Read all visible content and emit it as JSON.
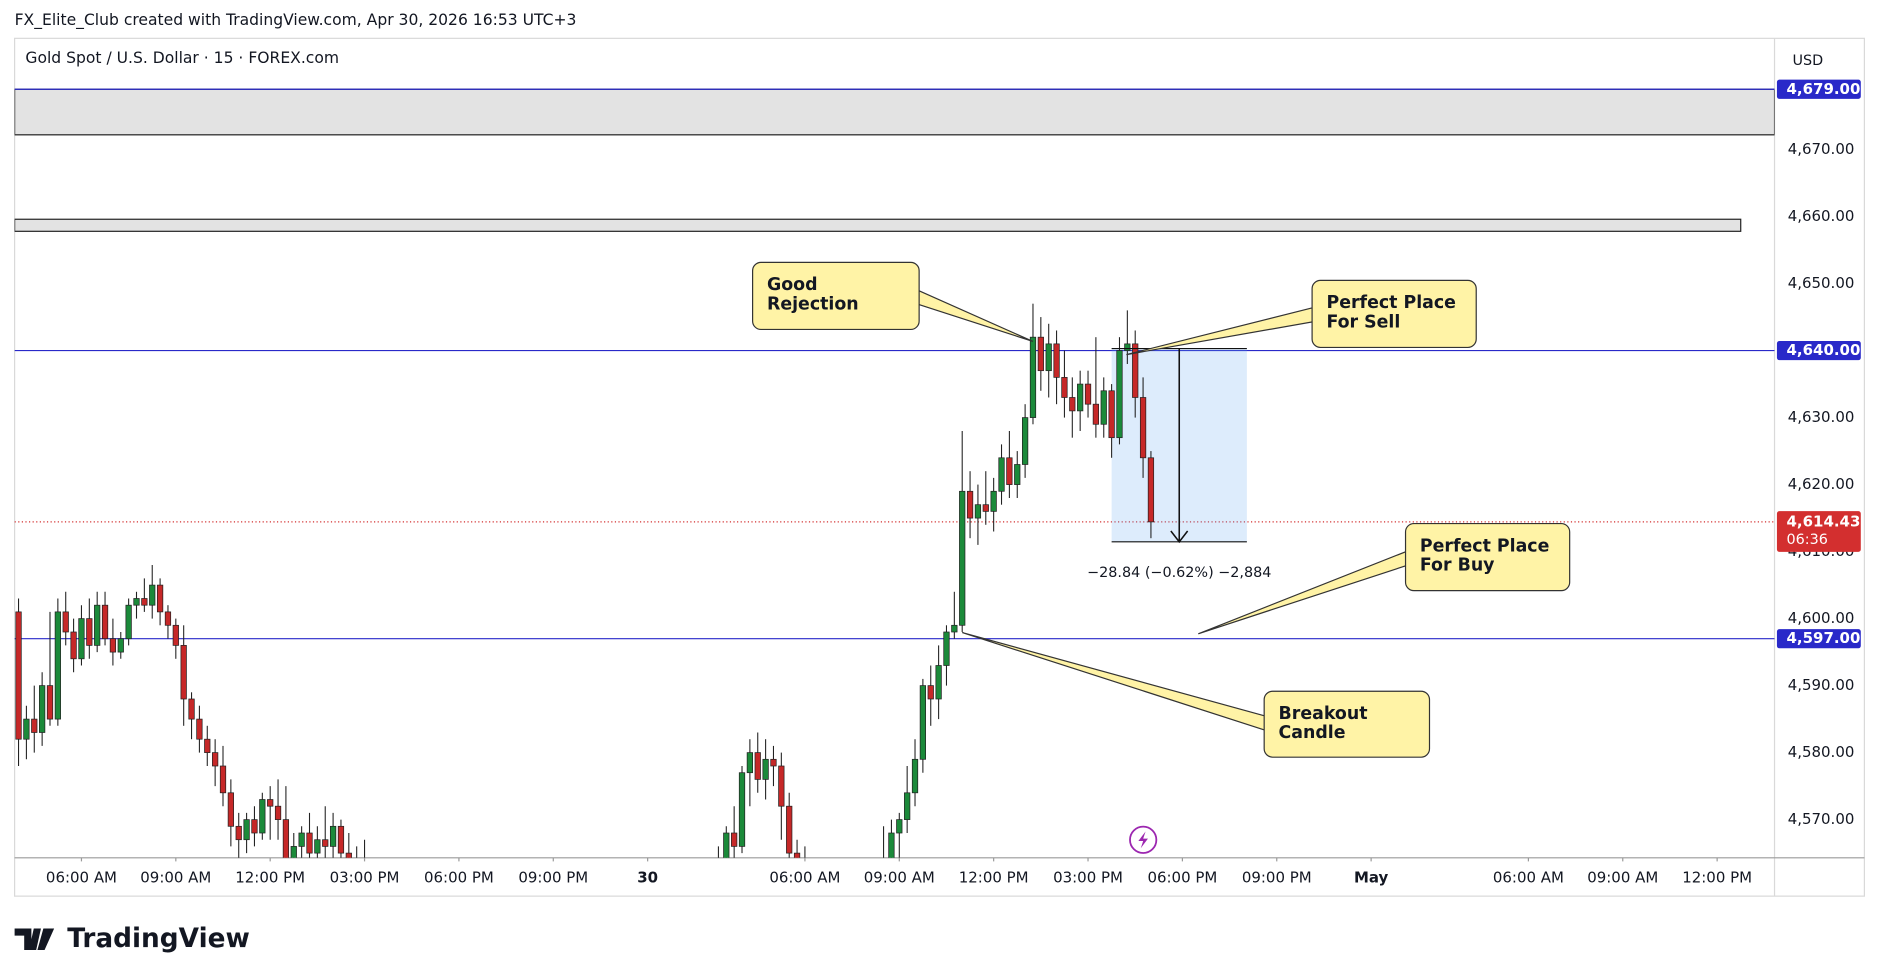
{
  "chart_data": {
    "type": "candlestick",
    "credit": "FX_Elite_Club created with TradingView.com, Apr 30, 2026 16:53 UTC+3",
    "title": "Gold Spot / U.S. Dollar · 15 · FOREX.com",
    "y_unit": "USD",
    "brand": "TradingView",
    "up_color": "#1b8a3a",
    "down_color": "#c62828",
    "xlim": [
      -0.5,
      223.3
    ],
    "xticks": [
      {
        "value": 8,
        "label": "06:00 AM"
      },
      {
        "value": 20,
        "label": "09:00 AM"
      },
      {
        "value": 32,
        "label": "12:00 PM"
      },
      {
        "value": 44,
        "label": "03:00 PM"
      },
      {
        "value": 56,
        "label": "06:00 PM"
      },
      {
        "value": 68,
        "label": "09:00 PM"
      },
      {
        "value": 80,
        "label": "30"
      },
      {
        "value": 100,
        "label": "06:00 AM"
      },
      {
        "value": 112,
        "label": "09:00 AM"
      },
      {
        "value": 124,
        "label": "12:00 PM"
      },
      {
        "value": 136,
        "label": "03:00 PM"
      },
      {
        "value": 148,
        "label": "06:00 PM"
      },
      {
        "value": 160,
        "label": "09:00 PM"
      },
      {
        "value": 172,
        "label": "May"
      },
      {
        "value": 192,
        "label": "06:00 AM"
      },
      {
        "value": 204,
        "label": "09:00 AM"
      },
      {
        "value": 216,
        "label": "12:00 PM"
      }
    ],
    "ylim": [
      4564.3,
      4686.6
    ],
    "yticks": [
      {
        "value": 4570,
        "label": "4,570.00"
      },
      {
        "value": 4580,
        "label": "4,580.00"
      },
      {
        "value": 4590,
        "label": "4,590.00"
      },
      {
        "value": 4600,
        "label": "4,600.00"
      },
      {
        "value": 4610,
        "label": "4,610.00"
      },
      {
        "value": 4620,
        "label": "4,620.00"
      },
      {
        "value": 4630,
        "label": "4,630.00"
      },
      {
        "value": 4640,
        "label": "4,640.00"
      },
      {
        "value": 4650,
        "label": "4,650.00"
      },
      {
        "value": 4660,
        "label": "4,660.00"
      },
      {
        "value": 4670,
        "label": "4,670.00"
      }
    ],
    "grid": false,
    "x": [
      0,
      1,
      2,
      3,
      4,
      5,
      6,
      7,
      8,
      9,
      10,
      11,
      12,
      13,
      14,
      15,
      16,
      17,
      18,
      19,
      20,
      21,
      22,
      23,
      24,
      25,
      26,
      27,
      28,
      29,
      30,
      31,
      32,
      33,
      34,
      35,
      36,
      37,
      38,
      39,
      40,
      41,
      42,
      43,
      44,
      89,
      90,
      91,
      92,
      93,
      94,
      95,
      96,
      97,
      98,
      99,
      100,
      110,
      111,
      112,
      113,
      114,
      115,
      116,
      117,
      118,
      119,
      120,
      121,
      122,
      123,
      124,
      125,
      126,
      127,
      128,
      129,
      130,
      131,
      132,
      133,
      134,
      135,
      136,
      137,
      138,
      139,
      140,
      141,
      142,
      143,
      144
    ],
    "open": [
      4601,
      4582,
      4585,
      4583,
      4590,
      4585,
      4601,
      4598,
      4594,
      4600,
      4596,
      4602,
      4597,
      4595,
      4597,
      4602,
      4603,
      4602,
      4605,
      4601,
      4599,
      4596,
      4588,
      4585,
      4582,
      4580,
      4578,
      4574,
      4569,
      4567,
      4570,
      4568,
      4573,
      4572,
      4570,
      4564,
      4566,
      4568,
      4565,
      4567,
      4566,
      4569,
      4565,
      4563,
      4562,
      4560,
      4563,
      4568,
      4566,
      4577,
      4580,
      4576,
      4579,
      4578,
      4572,
      4565,
      4562,
      4560,
      4563,
      4568,
      4570,
      4574,
      4579,
      4590,
      4588,
      4593,
      4598,
      4599,
      4619,
      4615,
      4617,
      4616,
      4619,
      4624,
      4620,
      4623,
      4630,
      4642,
      4637,
      4641,
      4636,
      4633,
      4631,
      4635,
      4632,
      4629,
      4634,
      4627,
      4640,
      4641,
      4633,
      4624
    ],
    "high": [
      4603,
      4587,
      4590,
      4592,
      4601,
      4603,
      4604,
      4600,
      4602,
      4603,
      4604,
      4604,
      4600,
      4598,
      4603,
      4604,
      4606,
      4608,
      4606,
      4602,
      4600,
      4599,
      4589,
      4587,
      4584,
      4582,
      4581,
      4576,
      4571,
      4571,
      4572,
      4574,
      4575,
      4576,
      4575,
      4568,
      4569,
      4571,
      4569,
      4572,
      4571,
      4570,
      4568,
      4566,
      4567,
      4566,
      4569,
      4572,
      4578,
      4582,
      4583,
      4582,
      4581,
      4580,
      4574,
      4567,
      4566,
      4569,
      4570,
      4571,
      4578,
      4582,
      4591,
      4593,
      4596,
      4599,
      4604,
      4628,
      4622,
      4620,
      4622,
      4621,
      4626,
      4628,
      4625,
      4632,
      4647,
      4645,
      4644,
      4643,
      4640,
      4636,
      4637,
      4637,
      4642,
      4636,
      4635,
      4642,
      4646,
      4643,
      4636,
      4625
    ],
    "low": [
      4578,
      4579,
      4580,
      4581,
      4584,
      4584,
      4596,
      4592,
      4593,
      4594,
      4595,
      4596,
      4593,
      4594,
      4596,
      4600,
      4601,
      4600,
      4599,
      4597,
      4594,
      4584,
      4582,
      4580,
      4578,
      4575,
      4572,
      4566,
      4564,
      4565,
      4566,
      4567,
      4567,
      4567,
      4562,
      4560,
      4562,
      4563,
      4560,
      4563,
      4564,
      4563,
      4560,
      4558,
      4555,
      4555,
      4561,
      4563,
      4565,
      4572,
      4574,
      4573,
      4575,
      4567,
      4560,
      4560,
      4558,
      4558,
      4560,
      4564,
      4568,
      4572,
      4577,
      4584,
      4585,
      4590,
      4597,
      4598,
      4612,
      4611,
      4614,
      4613,
      4617,
      4618,
      4618,
      4621,
      4629,
      4634,
      4633,
      4632,
      4630,
      4627,
      4628,
      4630,
      4627,
      4627,
      4624,
      4626,
      4638,
      4630,
      4621,
      4612
    ],
    "close": [
      4582,
      4585,
      4583,
      4590,
      4585,
      4601,
      4598,
      4594,
      4600,
      4596,
      4602,
      4597,
      4595,
      4597,
      4602,
      4603,
      4602,
      4605,
      4601,
      4599,
      4596,
      4588,
      4585,
      4582,
      4580,
      4578,
      4574,
      4569,
      4567,
      4570,
      4568,
      4573,
      4572,
      4570,
      4564,
      4566,
      4568,
      4565,
      4567,
      4566,
      4569,
      4565,
      4563,
      4562,
      4560,
      4563,
      4568,
      4566,
      4577,
      4580,
      4576,
      4579,
      4578,
      4572,
      4565,
      4562,
      4563,
      4563,
      4568,
      4570,
      4574,
      4579,
      4590,
      4588,
      4593,
      4598,
      4599,
      4619,
      4615,
      4617,
      4616,
      4619,
      4624,
      4620,
      4623,
      4630,
      4642,
      4637,
      4641,
      4636,
      4633,
      4631,
      4635,
      4632,
      4629,
      4634,
      4627,
      4640,
      4641,
      4633,
      4624,
      4614.43
    ],
    "zones": [
      {
        "from": 4679,
        "to": 4672.2
      },
      {
        "from": 4659.6,
        "to": 4657.8,
        "x_end": 219
      }
    ],
    "levels": [
      {
        "value": 4679,
        "label": "4,679.00",
        "color": "#2929c9"
      },
      {
        "value": 4640,
        "label": "4,640.00",
        "color": "#2929c9"
      },
      {
        "value": 4597,
        "label": "4,597.00",
        "color": "#2929c9"
      }
    ],
    "last_price": {
      "value": 4614.43,
      "label": "4,614.43",
      "countdown": "06:36",
      "color": "#d32f2f"
    },
    "measure": {
      "x_start": 139,
      "x_end": 156.2,
      "from": 4640.3,
      "to": 4611.46,
      "label": "−28.84 (−0.62%) −2,884"
    },
    "annotations": [
      {
        "lines": [
          "Good",
          "Rejection"
        ]
      },
      {
        "lines": [
          "Perfect Place",
          "For Sell"
        ]
      },
      {
        "lines": [
          "Perfect Place",
          "For Buy"
        ]
      },
      {
        "lines": [
          "Breakout",
          "Candle"
        ]
      }
    ]
  }
}
